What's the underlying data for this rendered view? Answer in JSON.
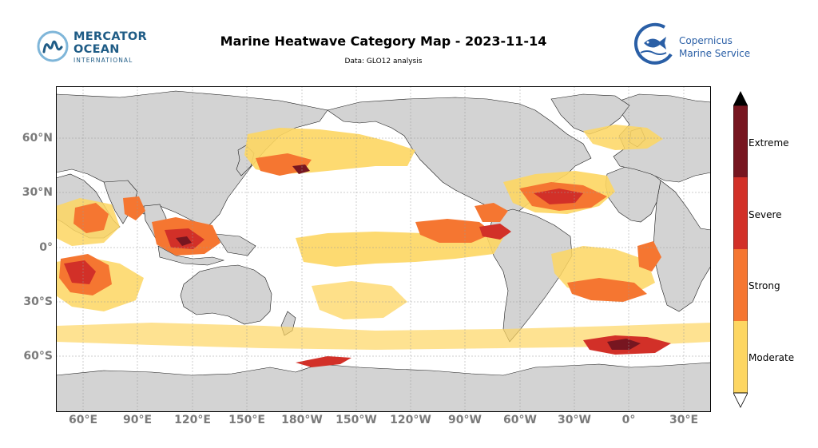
{
  "header": {
    "title": "Marine Heatwave Category Map - 2023-11-14",
    "subtitle": "Data: GLO12 analysis"
  },
  "logos": {
    "left": {
      "line1": "MERCATOR",
      "line2": "OCEAN",
      "line3": "INTERNATIONAL",
      "icon": "mercator-m-icon"
    },
    "right": {
      "line1": "Copernicus",
      "line2": "Marine Service",
      "icon": "copernicus-fish-icon"
    }
  },
  "map": {
    "projection": "equirectangular",
    "central_longitude": "180°W",
    "land_color": "#d3d3d3",
    "ocean_color": "#ffffff",
    "lat_labels": [
      "60°N",
      "30°N",
      "0°",
      "30°S",
      "60°S"
    ],
    "lon_labels": [
      "60°E",
      "90°E",
      "120°E",
      "150°E",
      "180°W",
      "150°W",
      "120°W",
      "90°W",
      "60°W",
      "30°W",
      "0°",
      "30°E"
    ]
  },
  "legend": {
    "categories": [
      {
        "label": "Moderate",
        "color": "#fdd662"
      },
      {
        "label": "Strong",
        "color": "#f57631"
      },
      {
        "label": "Severe",
        "color": "#d23028"
      },
      {
        "label": "Extreme",
        "color": "#771620"
      }
    ]
  }
}
